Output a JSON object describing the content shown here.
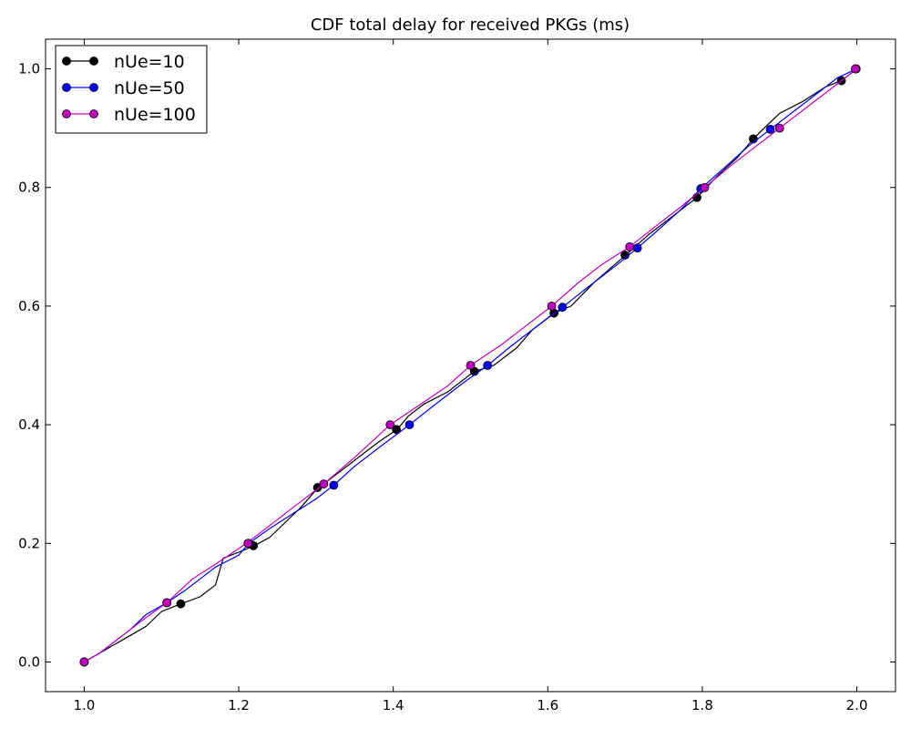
{
  "chart_data": {
    "type": "line",
    "title": "CDF total delay for received PKGs (ms)",
    "xlabel": "",
    "ylabel": "",
    "xlim": [
      0.95,
      2.05
    ],
    "ylim": [
      -0.05,
      1.05
    ],
    "x_ticks": [
      1.0,
      1.2,
      1.4,
      1.6,
      1.8,
      2.0
    ],
    "x_tick_labels": [
      "1.0",
      "1.2",
      "1.4",
      "1.6",
      "1.8",
      "2.0"
    ],
    "y_ticks": [
      0.0,
      0.2,
      0.4,
      0.6,
      0.8,
      1.0
    ],
    "y_tick_labels": [
      "0.0",
      "0.2",
      "0.4",
      "0.6",
      "0.8",
      "1.0"
    ],
    "grid": false,
    "legend_position": "top-left",
    "series": [
      {
        "name": "nUe=10",
        "color": "#000000",
        "line": [
          [
            1.0,
            0.0
          ],
          [
            1.02,
            0.015
          ],
          [
            1.04,
            0.03
          ],
          [
            1.06,
            0.045
          ],
          [
            1.08,
            0.06
          ],
          [
            1.1,
            0.085
          ],
          [
            1.125,
            0.098
          ],
          [
            1.15,
            0.11
          ],
          [
            1.17,
            0.13
          ],
          [
            1.18,
            0.175
          ],
          [
            1.2,
            0.185
          ],
          [
            1.22,
            0.196
          ],
          [
            1.24,
            0.21
          ],
          [
            1.26,
            0.235
          ],
          [
            1.28,
            0.26
          ],
          [
            1.3,
            0.29
          ],
          [
            1.32,
            0.31
          ],
          [
            1.35,
            0.34
          ],
          [
            1.38,
            0.37
          ],
          [
            1.405,
            0.392
          ],
          [
            1.42,
            0.415
          ],
          [
            1.44,
            0.435
          ],
          [
            1.47,
            0.455
          ],
          [
            1.505,
            0.49
          ],
          [
            1.53,
            0.5
          ],
          [
            1.56,
            0.53
          ],
          [
            1.58,
            0.56
          ],
          [
            1.608,
            0.588
          ],
          [
            1.63,
            0.6
          ],
          [
            1.66,
            0.64
          ],
          [
            1.7,
            0.685
          ],
          [
            1.73,
            0.72
          ],
          [
            1.76,
            0.75
          ],
          [
            1.793,
            0.783
          ],
          [
            1.82,
            0.82
          ],
          [
            1.845,
            0.85
          ],
          [
            1.866,
            0.882
          ],
          [
            1.88,
            0.9
          ],
          [
            1.9,
            0.925
          ],
          [
            1.93,
            0.945
          ],
          [
            1.96,
            0.97
          ],
          [
            1.98,
            0.98
          ],
          [
            2.0,
            1.0
          ]
        ],
        "markers": [
          [
            1.0,
            0.0
          ],
          [
            1.125,
            0.098
          ],
          [
            1.219,
            0.196
          ],
          [
            1.302,
            0.294
          ],
          [
            1.404,
            0.392
          ],
          [
            1.505,
            0.49
          ],
          [
            1.608,
            0.588
          ],
          [
            1.7,
            0.686
          ],
          [
            1.793,
            0.783
          ],
          [
            1.866,
            0.882
          ],
          [
            1.98,
            0.98
          ],
          [
            1.999,
            1.0
          ]
        ]
      },
      {
        "name": "nUe=50",
        "color": "#0000ff",
        "line": [
          [
            1.0,
            0.0
          ],
          [
            1.02,
            0.015
          ],
          [
            1.04,
            0.035
          ],
          [
            1.06,
            0.055
          ],
          [
            1.08,
            0.08
          ],
          [
            1.107,
            0.1
          ],
          [
            1.13,
            0.12
          ],
          [
            1.15,
            0.14
          ],
          [
            1.17,
            0.16
          ],
          [
            1.2,
            0.18
          ],
          [
            1.213,
            0.2
          ],
          [
            1.24,
            0.225
          ],
          [
            1.27,
            0.25
          ],
          [
            1.3,
            0.275
          ],
          [
            1.323,
            0.298
          ],
          [
            1.35,
            0.33
          ],
          [
            1.38,
            0.36
          ],
          [
            1.421,
            0.4
          ],
          [
            1.45,
            0.43
          ],
          [
            1.49,
            0.47
          ],
          [
            1.522,
            0.5
          ],
          [
            1.55,
            0.53
          ],
          [
            1.58,
            0.56
          ],
          [
            1.619,
            0.598
          ],
          [
            1.65,
            0.63
          ],
          [
            1.69,
            0.67
          ],
          [
            1.716,
            0.698
          ],
          [
            1.74,
            0.725
          ],
          [
            1.77,
            0.76
          ],
          [
            1.798,
            0.798
          ],
          [
            1.83,
            0.835
          ],
          [
            1.86,
            0.87
          ],
          [
            1.888,
            0.898
          ],
          [
            1.92,
            0.93
          ],
          [
            1.95,
            0.96
          ],
          [
            1.975,
            0.985
          ],
          [
            2.0,
            1.0
          ]
        ],
        "markers": [
          [
            1.0,
            0.0
          ],
          [
            1.107,
            0.1
          ],
          [
            1.213,
            0.2
          ],
          [
            1.323,
            0.298
          ],
          [
            1.421,
            0.4
          ],
          [
            1.522,
            0.5
          ],
          [
            1.619,
            0.598
          ],
          [
            1.716,
            0.698
          ],
          [
            1.798,
            0.798
          ],
          [
            1.888,
            0.898
          ],
          [
            1.999,
            1.0
          ]
        ]
      },
      {
        "name": "nUe=100",
        "color": "#bf00bf",
        "line": [
          [
            1.0,
            0.0
          ],
          [
            1.02,
            0.015
          ],
          [
            1.05,
            0.045
          ],
          [
            1.08,
            0.075
          ],
          [
            1.107,
            0.1
          ],
          [
            1.14,
            0.14
          ],
          [
            1.17,
            0.165
          ],
          [
            1.21,
            0.2
          ],
          [
            1.25,
            0.24
          ],
          [
            1.28,
            0.27
          ],
          [
            1.31,
            0.3
          ],
          [
            1.35,
            0.345
          ],
          [
            1.396,
            0.4
          ],
          [
            1.43,
            0.43
          ],
          [
            1.47,
            0.465
          ],
          [
            1.5,
            0.5
          ],
          [
            1.54,
            0.535
          ],
          [
            1.57,
            0.565
          ],
          [
            1.605,
            0.6
          ],
          [
            1.64,
            0.64
          ],
          [
            1.67,
            0.67
          ],
          [
            1.706,
            0.7
          ],
          [
            1.74,
            0.735
          ],
          [
            1.77,
            0.765
          ],
          [
            1.803,
            0.8
          ],
          [
            1.84,
            0.84
          ],
          [
            1.87,
            0.87
          ],
          [
            1.9,
            0.9
          ],
          [
            1.94,
            0.94
          ],
          [
            1.97,
            0.97
          ],
          [
            2.0,
            1.0
          ]
        ],
        "markers": [
          [
            1.0,
            0.0
          ],
          [
            1.107,
            0.1
          ],
          [
            1.212,
            0.2
          ],
          [
            1.31,
            0.3
          ],
          [
            1.396,
            0.4
          ],
          [
            1.5,
            0.5
          ],
          [
            1.605,
            0.6
          ],
          [
            1.706,
            0.7
          ],
          [
            1.803,
            0.8
          ],
          [
            1.9,
            0.9
          ],
          [
            1.998,
            1.0
          ]
        ]
      }
    ]
  }
}
